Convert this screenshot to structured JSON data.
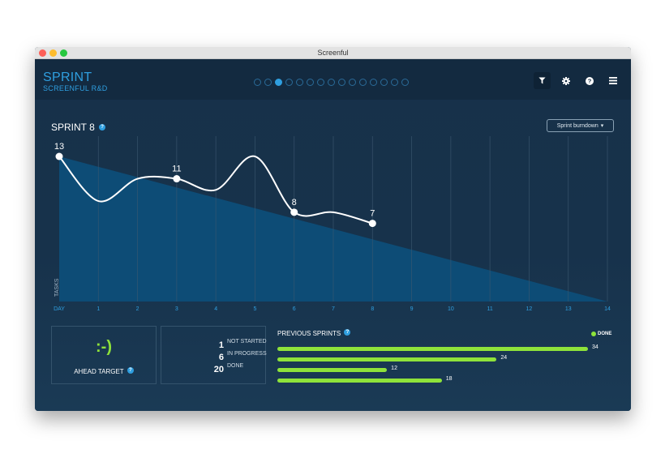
{
  "window": {
    "title": "Screenful"
  },
  "header": {
    "title": "SPRINT",
    "subtitle": "SCREENFUL R&D",
    "pager": {
      "count": 15,
      "active_index": 2
    },
    "tools": [
      "filter-icon",
      "gear-icon",
      "help-icon",
      "menu-icon"
    ]
  },
  "chart_panel": {
    "title": "SPRINT 8",
    "dropdown_label": "Sprint burndown"
  },
  "chart_data": {
    "type": "line",
    "title": "SPRINT 8",
    "xlabel": "",
    "ylabel": "TASKS",
    "x_ticks": [
      "DAY",
      "1",
      "2",
      "3",
      "4",
      "5",
      "6",
      "7",
      "8",
      "9",
      "10",
      "11",
      "12",
      "13",
      "14"
    ],
    "xlim": [
      0,
      14
    ],
    "ylim": [
      0,
      13
    ],
    "grid": true,
    "series": [
      {
        "name": "",
        "type": "area",
        "x": [
          0,
          14
        ],
        "y": [
          13,
          0
        ]
      },
      {
        "name": "",
        "type": "line",
        "x": [
          0,
          1,
          2,
          3,
          4,
          5,
          6,
          7,
          8
        ],
        "y": [
          13,
          9,
          11,
          11,
          10,
          13,
          8,
          8,
          7
        ]
      }
    ],
    "labeled_points": [
      {
        "x": 0,
        "y": 13,
        "label": "13"
      },
      {
        "x": 3,
        "y": 11,
        "label": "11"
      },
      {
        "x": 6,
        "y": 8,
        "label": "8"
      },
      {
        "x": 8,
        "y": 7,
        "label": "7"
      }
    ],
    "colors": {
      "line": "#ffffff",
      "area": "#0d4e78",
      "grid": "#3b5870",
      "tick": "#2f9fe0"
    }
  },
  "status": {
    "face": ":-)",
    "label": "AHEAD TARGET",
    "counts": [
      {
        "value": "1",
        "label": "NOT STARTED"
      },
      {
        "value": "6",
        "label": "IN PROGRESS"
      },
      {
        "value": "20",
        "label": "DONE"
      }
    ]
  },
  "previous_sprints": {
    "title": "PREVIOUS SPRINTS",
    "legend": "DONE",
    "color": "#8ee33a",
    "max": 34,
    "values": [
      "34",
      "24",
      "12",
      "18"
    ]
  }
}
